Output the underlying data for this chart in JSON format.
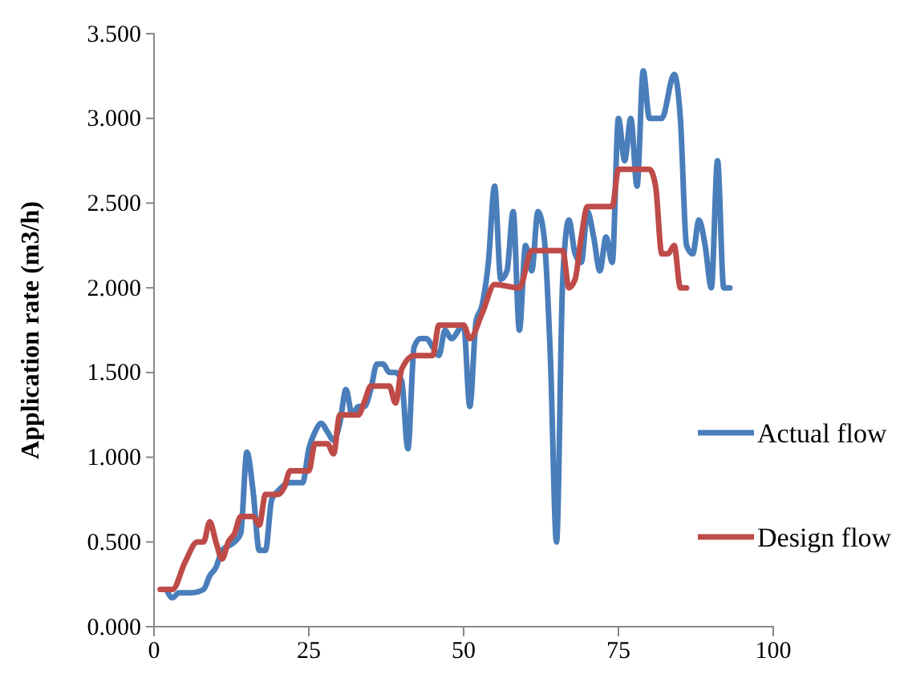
{
  "chart_data": {
    "type": "line",
    "ylabel": "Application rate (m3/h)",
    "xlim": [
      0,
      100
    ],
    "xticks": [
      0,
      25,
      50,
      75,
      100
    ],
    "ylim": [
      0,
      3.5
    ],
    "yticks": [
      {
        "value": 0,
        "label": "0.000"
      },
      {
        "value": 0.5,
        "label": "0.500"
      },
      {
        "value": 1,
        "label": "1.000"
      },
      {
        "value": 1.5,
        "label": "1.500"
      },
      {
        "value": 2,
        "label": "2.000"
      },
      {
        "value": 2.5,
        "label": "2.500"
      },
      {
        "value": 3,
        "label": "3.000"
      },
      {
        "value": 3.5,
        "label": "3.500"
      }
    ],
    "grid": false,
    "legend": "right",
    "marker": "none",
    "line_style": "solid",
    "series": [
      {
        "name": "Actual flow",
        "color": "#4a7ebb",
        "x": [
          2,
          3,
          4,
          6,
          8,
          9,
          10,
          11,
          13,
          14,
          15,
          16,
          17,
          18,
          19,
          20,
          22,
          24,
          25,
          26,
          27,
          28,
          29,
          30,
          31,
          32,
          33,
          34,
          35,
          36,
          37,
          38,
          39,
          40,
          41,
          42,
          43,
          44,
          45,
          46,
          47,
          48,
          50,
          51,
          52,
          53,
          54,
          55,
          56,
          57,
          58,
          59,
          60,
          61,
          62,
          63,
          64,
          65,
          66,
          67,
          68,
          69,
          70,
          71,
          72,
          73,
          74,
          75,
          76,
          77,
          78,
          79,
          80,
          82,
          84,
          85,
          86,
          87,
          88,
          89,
          90,
          91,
          92,
          93
        ],
        "values": [
          0.22,
          0.17,
          0.2,
          0.2,
          0.22,
          0.3,
          0.35,
          0.45,
          0.5,
          0.55,
          1.03,
          0.8,
          0.45,
          0.45,
          0.75,
          0.8,
          0.85,
          0.85,
          1.05,
          1.15,
          1.2,
          1.15,
          1.1,
          1.2,
          1.4,
          1.25,
          1.3,
          1.3,
          1.4,
          1.55,
          1.55,
          1.5,
          1.5,
          1.45,
          1.05,
          1.65,
          1.7,
          1.7,
          1.65,
          1.6,
          1.75,
          1.7,
          1.78,
          1.3,
          1.8,
          1.9,
          2.15,
          2.6,
          2.05,
          2.1,
          2.45,
          1.75,
          2.25,
          2.1,
          2.45,
          2.3,
          1.6,
          0.5,
          2.05,
          2.4,
          2.2,
          2.15,
          2.45,
          2.3,
          2.1,
          2.3,
          2.15,
          3.0,
          2.75,
          3.0,
          2.6,
          3.28,
          3.0,
          3.0,
          3.26,
          3.0,
          2.25,
          2.2,
          2.4,
          2.25,
          2.0,
          2.75,
          2.0,
          2.0
        ]
      },
      {
        "name": "Design flow",
        "color": "#be4b48",
        "x": [
          1,
          3,
          5,
          7,
          8,
          9,
          10,
          11,
          12,
          13,
          14,
          16,
          17,
          18,
          20,
          21,
          22,
          25,
          26,
          28,
          29,
          30,
          33,
          34,
          35,
          38,
          39,
          40,
          42,
          45,
          46,
          50,
          51,
          53,
          55,
          59,
          61,
          66,
          67,
          68,
          69,
          70,
          74,
          75,
          80,
          81,
          82,
          83,
          84,
          85,
          86
        ],
        "values": [
          0.22,
          0.22,
          0.38,
          0.5,
          0.5,
          0.62,
          0.5,
          0.4,
          0.5,
          0.55,
          0.65,
          0.65,
          0.6,
          0.78,
          0.78,
          0.82,
          0.92,
          0.92,
          1.08,
          1.08,
          1.02,
          1.25,
          1.25,
          1.33,
          1.42,
          1.42,
          1.32,
          1.52,
          1.6,
          1.6,
          1.78,
          1.78,
          1.7,
          1.85,
          2.02,
          2.0,
          2.22,
          2.22,
          2.0,
          2.05,
          2.3,
          2.48,
          2.48,
          2.7,
          2.7,
          2.6,
          2.2,
          2.2,
          2.25,
          2.0,
          2.0
        ]
      }
    ]
  }
}
